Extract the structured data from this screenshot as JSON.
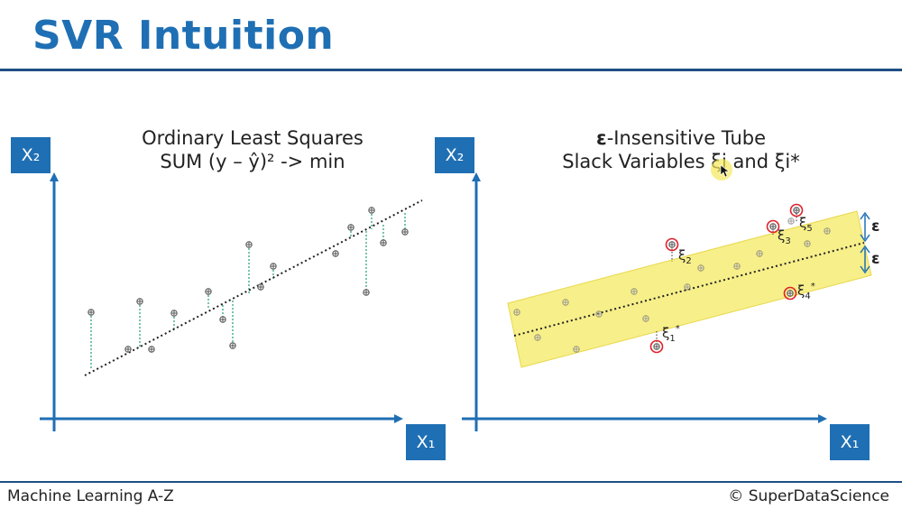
{
  "slide": {
    "title": "SVR Intuition",
    "footer_left": "Machine Learning A-Z",
    "footer_right": "© SuperDataScience"
  },
  "left_panel": {
    "heading_line1": "Ordinary Least Squares",
    "heading_line2": "SUM (y – ŷ)² -> min",
    "y_axis_label": "X₂",
    "x_axis_label": "X₁"
  },
  "right_panel": {
    "heading_symbol": "ε",
    "heading_rest": "-Insensitive Tube",
    "heading_line2": "Slack Variables ξi and ξi*",
    "y_axis_label": "X₂",
    "x_axis_label": "X₁",
    "epsilon_label_upper": "ε",
    "epsilon_label_lower": "ε",
    "slack_labels": [
      {
        "text": "ξ",
        "sub": "1",
        "sup": "*"
      },
      {
        "text": "ξ",
        "sub": "2",
        "sup": ""
      },
      {
        "text": "ξ",
        "sub": "3",
        "sup": ""
      },
      {
        "text": "ξ",
        "sub": "4",
        "sup": "*"
      },
      {
        "text": "ξ",
        "sub": "5",
        "sup": ""
      }
    ]
  },
  "colors": {
    "accent": "#1f6fb4",
    "residual": "#1f9e6e",
    "tube": "#f7ef8a",
    "outlier": "#e0202a"
  }
}
